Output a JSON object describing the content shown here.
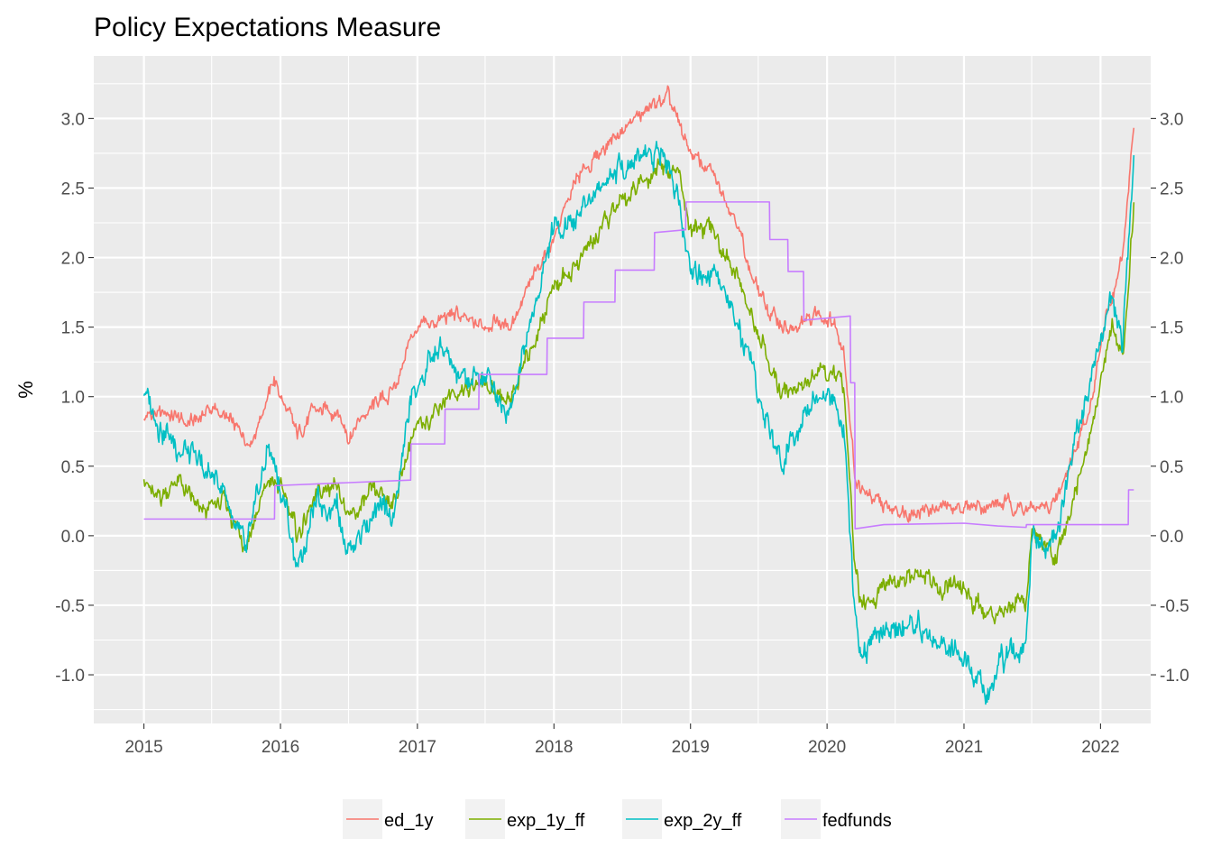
{
  "chart_data": {
    "type": "line",
    "title": "Policy Expectations Measure",
    "xlabel": "",
    "ylabel": "%",
    "x_ticks": [
      "2015",
      "2016",
      "2017",
      "2018",
      "2019",
      "2020",
      "2021",
      "2022"
    ],
    "y_ticks": [
      "-1.0",
      "-0.5",
      "0.0",
      "0.5",
      "1.0",
      "1.5",
      "2.0",
      "2.5",
      "3.0"
    ],
    "xlim": [
      "2014-08-20",
      "2022-05-15"
    ],
    "ylim": [
      -1.35,
      3.45
    ],
    "secondary_y_axis": true,
    "grid": true,
    "legend_position": "bottom",
    "series": [
      {
        "name": "ed_1y",
        "color": "#F8766D",
        "points": [
          [
            "2015-01-01",
            0.85
          ],
          [
            "2015-03-01",
            0.88
          ],
          [
            "2015-05-01",
            0.8
          ],
          [
            "2015-07-01",
            0.92
          ],
          [
            "2015-09-01",
            0.78
          ],
          [
            "2015-10-15",
            0.68
          ],
          [
            "2015-12-15",
            1.12
          ],
          [
            "2016-01-15",
            0.92
          ],
          [
            "2016-02-15",
            0.72
          ],
          [
            "2016-04-01",
            0.9
          ],
          [
            "2016-06-01",
            0.9
          ],
          [
            "2016-07-01",
            0.72
          ],
          [
            "2016-09-01",
            0.92
          ],
          [
            "2016-10-15",
            1.0
          ],
          [
            "2016-11-15",
            1.15
          ],
          [
            "2016-12-15",
            1.45
          ],
          [
            "2017-03-01",
            1.55
          ],
          [
            "2017-04-15",
            1.6
          ],
          [
            "2017-06-01",
            1.5
          ],
          [
            "2017-08-01",
            1.55
          ],
          [
            "2017-09-01",
            1.5
          ],
          [
            "2017-10-01",
            1.65
          ],
          [
            "2018-01-01",
            2.15
          ],
          [
            "2018-03-01",
            2.55
          ],
          [
            "2018-06-01",
            2.85
          ],
          [
            "2018-09-01",
            3.05
          ],
          [
            "2018-11-01",
            3.15
          ],
          [
            "2018-12-01",
            2.95
          ],
          [
            "2019-01-01",
            2.75
          ],
          [
            "2019-03-01",
            2.6
          ],
          [
            "2019-05-01",
            2.3
          ],
          [
            "2019-06-15",
            1.85
          ],
          [
            "2019-08-01",
            1.6
          ],
          [
            "2019-10-01",
            1.45
          ],
          [
            "2019-12-01",
            1.6
          ],
          [
            "2020-01-15",
            1.55
          ],
          [
            "2020-02-15",
            1.35
          ],
          [
            "2020-03-15",
            0.45
          ],
          [
            "2020-04-01",
            0.32
          ],
          [
            "2020-06-01",
            0.2
          ],
          [
            "2020-09-01",
            0.18
          ],
          [
            "2021-01-01",
            0.21
          ],
          [
            "2021-05-01",
            0.23
          ],
          [
            "2021-07-01",
            0.18
          ],
          [
            "2021-09-01",
            0.22
          ],
          [
            "2021-10-15",
            0.55
          ],
          [
            "2021-12-01",
            0.9
          ],
          [
            "2022-01-15",
            1.55
          ],
          [
            "2022-03-01",
            2.0
          ],
          [
            "2022-03-31",
            2.95
          ]
        ]
      },
      {
        "name": "exp_1y_ff",
        "color": "#7CAE00",
        "points": [
          [
            "2015-01-01",
            0.45
          ],
          [
            "2015-02-01",
            0.25
          ],
          [
            "2015-04-01",
            0.4
          ],
          [
            "2015-06-01",
            0.15
          ],
          [
            "2015-08-01",
            0.25
          ],
          [
            "2015-10-01",
            -0.05
          ],
          [
            "2015-12-01",
            0.4
          ],
          [
            "2016-01-15",
            0.3
          ],
          [
            "2016-02-15",
            0.0
          ],
          [
            "2016-04-01",
            0.25
          ],
          [
            "2016-06-01",
            0.4
          ],
          [
            "2016-07-01",
            0.1
          ],
          [
            "2016-09-01",
            0.3
          ],
          [
            "2016-11-01",
            0.25
          ],
          [
            "2016-12-15",
            0.7
          ],
          [
            "2017-03-01",
            0.95
          ],
          [
            "2017-05-01",
            1.05
          ],
          [
            "2017-07-01",
            1.1
          ],
          [
            "2017-09-01",
            0.95
          ],
          [
            "2017-11-01",
            1.35
          ],
          [
            "2018-01-01",
            1.8
          ],
          [
            "2018-03-01",
            1.95
          ],
          [
            "2018-06-01",
            2.3
          ],
          [
            "2018-09-01",
            2.55
          ],
          [
            "2018-10-15",
            2.7
          ],
          [
            "2018-12-01",
            2.6
          ],
          [
            "2019-01-01",
            2.2
          ],
          [
            "2019-03-01",
            2.2
          ],
          [
            "2019-05-01",
            1.9
          ],
          [
            "2019-07-01",
            1.45
          ],
          [
            "2019-09-01",
            1.0
          ],
          [
            "2019-11-01",
            1.1
          ],
          [
            "2020-01-15",
            1.2
          ],
          [
            "2020-02-15",
            1.05
          ],
          [
            "2020-03-15",
            -0.2
          ],
          [
            "2020-04-01",
            -0.55
          ],
          [
            "2020-06-01",
            -0.35
          ],
          [
            "2020-09-01",
            -0.3
          ],
          [
            "2021-01-01",
            -0.4
          ],
          [
            "2021-03-01",
            -0.55
          ],
          [
            "2021-05-01",
            -0.5
          ],
          [
            "2021-06-15",
            -0.45
          ],
          [
            "2021-07-01",
            0.0
          ],
          [
            "2021-09-01",
            -0.15
          ],
          [
            "2021-10-01",
            0.1
          ],
          [
            "2021-12-01",
            0.7
          ],
          [
            "2022-02-01",
            1.5
          ],
          [
            "2022-03-01",
            1.2
          ],
          [
            "2022-03-31",
            2.4
          ]
        ]
      },
      {
        "name": "exp_2y_ff",
        "color": "#00BFC4",
        "points": [
          [
            "2015-01-01",
            1.05
          ],
          [
            "2015-02-15",
            0.8
          ],
          [
            "2015-04-01",
            0.65
          ],
          [
            "2015-06-01",
            0.5
          ],
          [
            "2015-08-01",
            0.35
          ],
          [
            "2015-10-01",
            -0.15
          ],
          [
            "2015-12-01",
            0.65
          ],
          [
            "2016-01-15",
            0.2
          ],
          [
            "2016-02-15",
            -0.25
          ],
          [
            "2016-04-01",
            0.2
          ],
          [
            "2016-06-01",
            0.25
          ],
          [
            "2016-07-01",
            -0.1
          ],
          [
            "2016-09-01",
            0.15
          ],
          [
            "2016-11-01",
            0.15
          ],
          [
            "2016-12-15",
            1.0
          ],
          [
            "2017-03-01",
            1.35
          ],
          [
            "2017-05-01",
            1.1
          ],
          [
            "2017-07-01",
            1.15
          ],
          [
            "2017-09-01",
            0.9
          ],
          [
            "2017-11-01",
            1.55
          ],
          [
            "2018-01-01",
            2.2
          ],
          [
            "2018-03-01",
            2.3
          ],
          [
            "2018-06-01",
            2.6
          ],
          [
            "2018-09-01",
            2.75
          ],
          [
            "2018-10-15",
            2.8
          ],
          [
            "2018-12-01",
            2.45
          ],
          [
            "2019-01-01",
            1.9
          ],
          [
            "2019-03-01",
            1.9
          ],
          [
            "2019-05-01",
            1.55
          ],
          [
            "2019-07-01",
            1.0
          ],
          [
            "2019-09-01",
            0.5
          ],
          [
            "2019-11-01",
            0.95
          ],
          [
            "2020-01-15",
            1.0
          ],
          [
            "2020-02-15",
            0.8
          ],
          [
            "2020-03-15",
            -0.5
          ],
          [
            "2020-04-01",
            -0.85
          ],
          [
            "2020-06-01",
            -0.7
          ],
          [
            "2020-09-01",
            -0.65
          ],
          [
            "2021-01-01",
            -0.9
          ],
          [
            "2021-03-01",
            -1.1
          ],
          [
            "2021-05-01",
            -0.9
          ],
          [
            "2021-06-15",
            -0.75
          ],
          [
            "2021-07-01",
            0.0
          ],
          [
            "2021-09-01",
            -0.05
          ],
          [
            "2021-10-01",
            0.4
          ],
          [
            "2021-12-01",
            1.1
          ],
          [
            "2022-02-01",
            1.7
          ],
          [
            "2022-03-01",
            1.4
          ],
          [
            "2022-03-31",
            2.7
          ]
        ]
      },
      {
        "name": "fedfunds",
        "color": "#C77CFF",
        "points": [
          [
            "2015-01-01",
            0.12
          ],
          [
            "2015-12-16",
            0.12
          ],
          [
            "2015-12-17",
            0.36
          ],
          [
            "2016-12-14",
            0.4
          ],
          [
            "2016-12-15",
            0.66
          ],
          [
            "2017-03-15",
            0.66
          ],
          [
            "2017-03-16",
            0.91
          ],
          [
            "2017-06-14",
            0.91
          ],
          [
            "2017-06-15",
            1.16
          ],
          [
            "2017-12-13",
            1.16
          ],
          [
            "2017-12-14",
            1.42
          ],
          [
            "2018-03-21",
            1.42
          ],
          [
            "2018-03-22",
            1.68
          ],
          [
            "2018-06-13",
            1.68
          ],
          [
            "2018-06-14",
            1.91
          ],
          [
            "2018-09-26",
            1.91
          ],
          [
            "2018-09-27",
            2.18
          ],
          [
            "2018-12-19",
            2.2
          ],
          [
            "2018-12-20",
            2.4
          ],
          [
            "2019-07-31",
            2.4
          ],
          [
            "2019-08-01",
            2.13
          ],
          [
            "2019-09-18",
            2.13
          ],
          [
            "2019-09-19",
            1.9
          ],
          [
            "2019-10-30",
            1.9
          ],
          [
            "2019-10-31",
            1.55
          ],
          [
            "2020-03-03",
            1.58
          ],
          [
            "2020-03-04",
            1.1
          ],
          [
            "2020-03-15",
            1.1
          ],
          [
            "2020-03-16",
            0.05
          ],
          [
            "2020-06-01",
            0.08
          ],
          [
            "2021-01-01",
            0.09
          ],
          [
            "2021-04-01",
            0.07
          ],
          [
            "2021-06-16",
            0.06
          ],
          [
            "2021-06-17",
            0.08
          ],
          [
            "2022-03-16",
            0.08
          ],
          [
            "2022-03-17",
            0.33
          ],
          [
            "2022-03-31",
            0.33
          ]
        ]
      }
    ]
  }
}
